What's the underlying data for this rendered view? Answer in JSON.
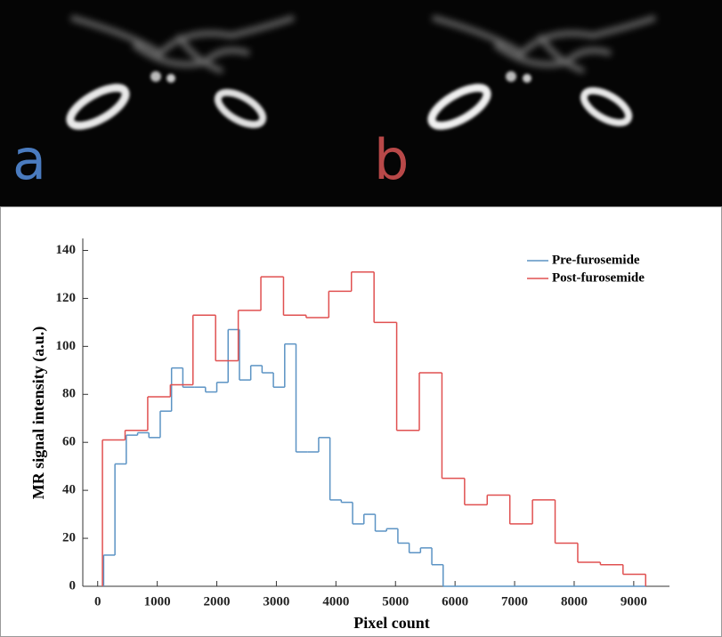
{
  "panels": [
    {
      "label": "a"
    },
    {
      "label": "b"
    }
  ],
  "chart_data": {
    "type": "histogram-step",
    "xlabel": "Pixel count",
    "ylabel": "MR signal intensity (a.u.)",
    "xlim": [
      -250,
      9600
    ],
    "ylim": [
      0,
      145
    ],
    "xticks": [
      0,
      1000,
      2000,
      3000,
      4000,
      5000,
      6000,
      7000,
      8000,
      9000
    ],
    "yticks": [
      0,
      20,
      40,
      60,
      80,
      100,
      120,
      140
    ],
    "legend": "upper right",
    "series": [
      {
        "name": "Pre-furosemide",
        "color": "#5b93c4",
        "bins": [
          100,
          290,
          480,
          670,
          860,
          1050,
          1240,
          1430,
          1620,
          1810,
          2000,
          2190,
          2380,
          2570,
          2760,
          2950,
          3140,
          3330,
          3520,
          3710,
          3900,
          4090,
          4280,
          4470,
          4660,
          4850,
          5040,
          5230,
          5420,
          5610,
          5800,
          9200
        ],
        "values": [
          13,
          51,
          63,
          64,
          62,
          73,
          91,
          83,
          83,
          81,
          85,
          107,
          86,
          92,
          89,
          83,
          101,
          56,
          56,
          62,
          36,
          35,
          26,
          30,
          23,
          24,
          18,
          14,
          16,
          9,
          0
        ]
      },
      {
        "name": "Post-furosemide",
        "color": "#e05050",
        "bins": [
          80,
          460,
          840,
          1220,
          1600,
          1980,
          2360,
          2740,
          3120,
          3500,
          3880,
          4260,
          4640,
          5020,
          5400,
          5780,
          6160,
          6540,
          6920,
          7300,
          7680,
          8060,
          8440,
          8820,
          9200
        ],
        "values": [
          61,
          65,
          79,
          84,
          113,
          94,
          115,
          129,
          113,
          112,
          123,
          131,
          110,
          65,
          89,
          45,
          34,
          38,
          26,
          36,
          18,
          10,
          9,
          5
        ]
      }
    ]
  }
}
